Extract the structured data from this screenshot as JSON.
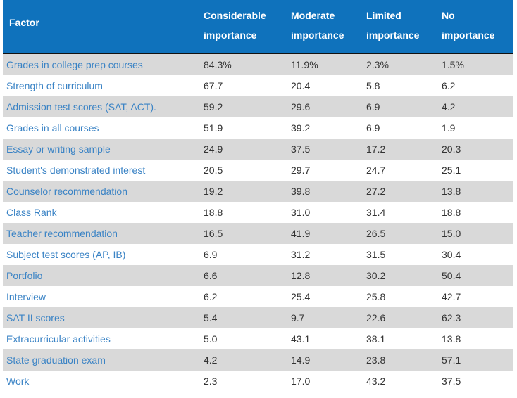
{
  "chart_data": {
    "type": "table",
    "header": {
      "factor": "Factor",
      "columns": [
        [
          "Considerable",
          "importance"
        ],
        [
          "Moderate",
          "importance"
        ],
        [
          "Limited",
          "importance"
        ],
        [
          "No",
          "importance"
        ]
      ]
    },
    "rows": [
      {
        "factor": "Grades in college prep courses",
        "values": [
          "84.3%",
          "11.9%",
          "2.3%",
          "1.5%"
        ]
      },
      {
        "factor": "Strength of curriculum",
        "values": [
          "67.7",
          "20.4",
          "5.8",
          "6.2"
        ]
      },
      {
        "factor": "Admission test scores (SAT, ACT).",
        "values": [
          "59.2",
          "29.6",
          "6.9",
          "4.2"
        ]
      },
      {
        "factor": "Grades in all courses",
        "values": [
          "51.9",
          "39.2",
          "6.9",
          "1.9"
        ]
      },
      {
        "factor": "Essay or writing sample",
        "values": [
          "24.9",
          "37.5",
          "17.2",
          "20.3"
        ]
      },
      {
        "factor": "Student's demonstrated interest",
        "values": [
          "20.5",
          "29.7",
          "24.7",
          "25.1"
        ]
      },
      {
        "factor": "Counselor recommendation",
        "values": [
          "19.2",
          "39.8",
          "27.2",
          "13.8"
        ]
      },
      {
        "factor": "Class Rank",
        "values": [
          "18.8",
          "31.0",
          "31.4",
          "18.8"
        ]
      },
      {
        "factor": "Teacher recommendation",
        "values": [
          "16.5",
          "41.9",
          "26.5",
          "15.0"
        ]
      },
      {
        "factor": "Subject test scores (AP, IB)",
        "values": [
          "6.9",
          "31.2",
          "31.5",
          "30.4"
        ]
      },
      {
        "factor": "Portfolio",
        "values": [
          "6.6",
          "12.8",
          "30.2",
          "50.4"
        ]
      },
      {
        "factor": "Interview",
        "values": [
          "6.2",
          "25.4",
          "25.8",
          "42.7"
        ]
      },
      {
        "factor": "SAT II scores",
        "values": [
          "5.4",
          "9.7",
          "22.6",
          "62.3"
        ]
      },
      {
        "factor": "Extracurricular activities",
        "values": [
          "5.0",
          "43.1",
          "38.1",
          "13.8"
        ]
      },
      {
        "factor": "State graduation exam",
        "values": [
          "4.2",
          "14.9",
          "23.8",
          "57.1"
        ]
      },
      {
        "factor": "Work",
        "values": [
          "2.3",
          "17.0",
          "43.2",
          "37.5"
        ]
      }
    ]
  },
  "colors": {
    "header_bg": "#0f72bc",
    "row_shade": "#d9d9d9",
    "factor_text": "#3a83c5",
    "value_text": "#333333"
  }
}
